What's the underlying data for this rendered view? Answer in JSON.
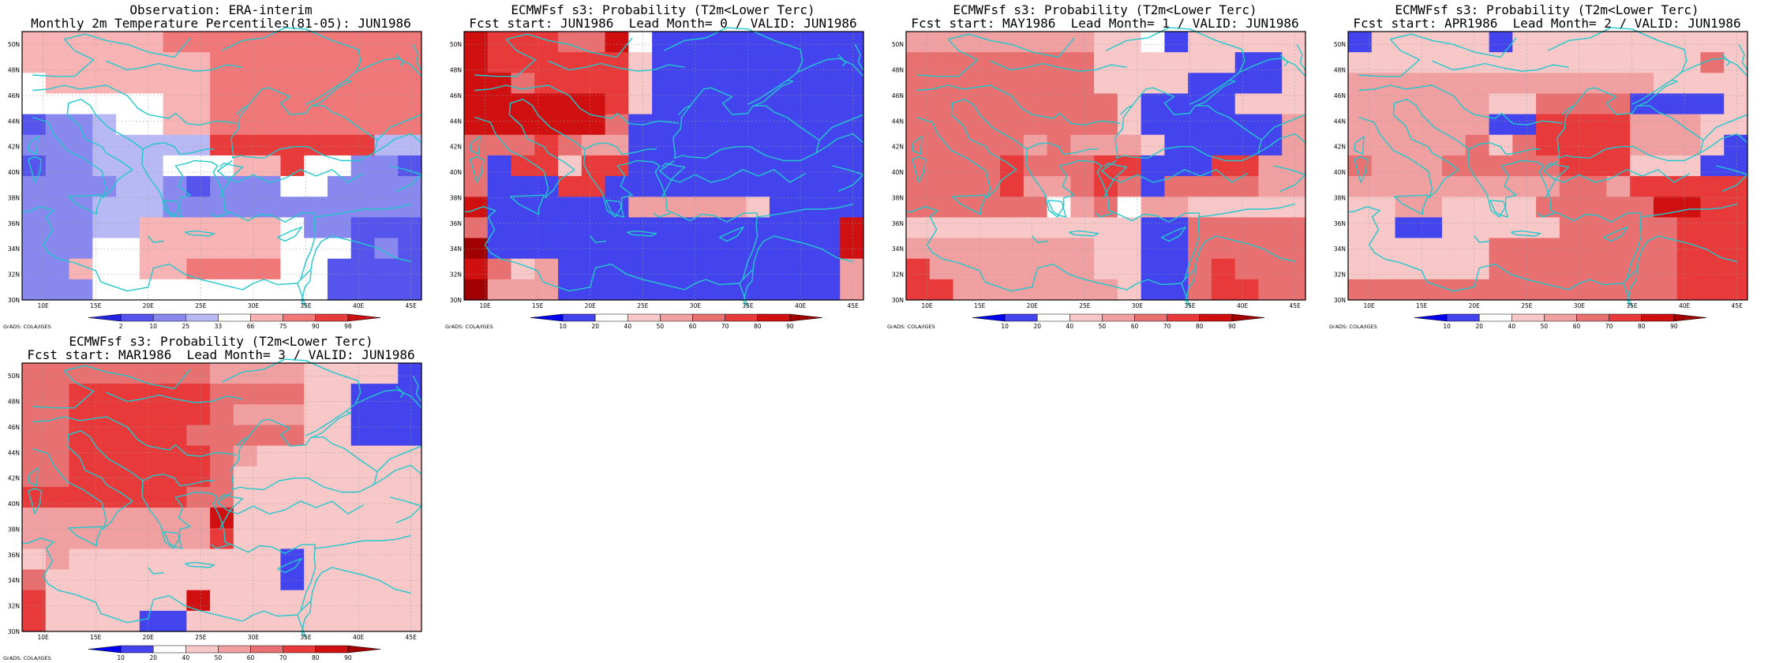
{
  "palettes": {
    "obs": [
      "#2222e0",
      "#5555ee",
      "#8888ee",
      "#b8b8f4",
      "#ffffff",
      "#f8b4b4",
      "#f07878",
      "#e83c3c",
      "#c81010"
    ],
    "prob": [
      "#0000ee",
      "#4444ee",
      "#ffffff",
      "#f8c8c8",
      "#f0a0a0",
      "#e87070",
      "#e83a3a",
      "#d01010",
      "#a00000"
    ]
  },
  "coast_color": "#22c8cc",
  "x_ticks": [
    "10E",
    "15E",
    "20E",
    "25E",
    "30E",
    "35E",
    "40E",
    "45E"
  ],
  "y_ticks": [
    "30N",
    "32N",
    "34N",
    "36N",
    "38N",
    "40N",
    "42N",
    "44N",
    "46N",
    "48N",
    "50N"
  ],
  "credit": "GrADS: COLA/IGES",
  "panels": [
    {
      "id": "obs",
      "title": "Observation: ERA-interim\nMonthly 2m Temperature Percentiles(81-05): JUN1986",
      "palette": "obs",
      "cb_labels": [
        "2",
        "10",
        "25",
        "33",
        "66",
        "75",
        "90",
        "98"
      ],
      "grid": [
        "55555566666666666",
        "55555555666666666",
        "45555555666666666",
        "44444455666666666",
        "12234455666666666",
        "22233333777777733",
        "12233344455744221",
        "22223321222442222",
        "22233322222222222",
        "22233555555422111",
        "22244555555444121",
        "22544556666441111",
        "22244444444441111"
      ]
    },
    {
      "id": "lead0",
      "title": "ECMWFsf s3: Probability (T2m<Lower Terc)\nFcst start: JUN1986  Lead Month= 0 / VALID: JUN1986",
      "palette": "prob",
      "cb_labels": [
        "10",
        "20",
        "40",
        "50",
        "60",
        "70",
        "80",
        "90"
      ],
      "grid": [
        "76665572111111111",
        "76666663111111111",
        "77566663111111111",
        "77777763111111111",
        "77777751111111111",
        "55565441111111111",
        "51663661111111111",
        "51116611111111111",
        "71111114444431111",
        "51111111111111117",
        "81111111111111117",
        "75341111111111114",
        "84441111111111114"
      ]
    },
    {
      "id": "lead1",
      "title": "ECMWFsf s3: Probability (T2m<Lower Terc)\nFcst start: MAY1986  Lead Month= 1 / VALID: JUN1986",
      "palette": "prob",
      "cb_labels": [
        "10",
        "20",
        "40",
        "50",
        "60",
        "70",
        "80",
        "90"
      ],
      "grid": [
        "44444444332133333",
        "55555555333333113",
        "55555555333311113",
        "55555555531111333",
        "55555555531111114",
        "55555454443111114",
        "55556555661116644",
        "55556445651555544",
        "55555524524433333",
        "33333333331155555",
        "44444444331155555",
        "64444444331156555",
        "66444444431156655"
      ]
    },
    {
      "id": "lead2",
      "title": "ECMWFsf s3: Probability (T2m<Lower Terc)\nFcst start: APR1986  Lead Month= 2 / VALID: JUN1986",
      "palette": "prob",
      "cb_labels": [
        "10",
        "20",
        "40",
        "50",
        "60",
        "70",
        "80",
        "90"
      ],
      "grid": [
        "13333313333333333",
        "33333333333333353",
        "44444444444443333",
        "44444433555511113",
        "44444411666644433",
        "44444535666644431",
        "54445555566633311",
        "44444444455466666",
        "33443333555557766",
        "33113333355555666",
        "33333355555555666",
        "33333355555555666",
        "55555555555555666"
      ]
    },
    {
      "id": "lead3",
      "title": "ECMWFsf s3: Probability (T2m<Lower Terc)\nFcst start: MAR1986  Lead Month= 3 / VALID: JUN1986",
      "palette": "prob",
      "cb_labels": [
        "10",
        "20",
        "40",
        "50",
        "60",
        "70",
        "80",
        "90"
      ],
      "grid": [
        "55555555444433331",
        "55666666555533111",
        "55666666544433111",
        "55666665555533111",
        "55666666543333333",
        "55666666533333333",
        "66666665533333333",
        "44444444733333333",
        "44444444633333333",
        "34333333333133333",
        "53333333333133333",
        "63333337333333333",
        "63333113333333333"
      ]
    }
  ]
}
